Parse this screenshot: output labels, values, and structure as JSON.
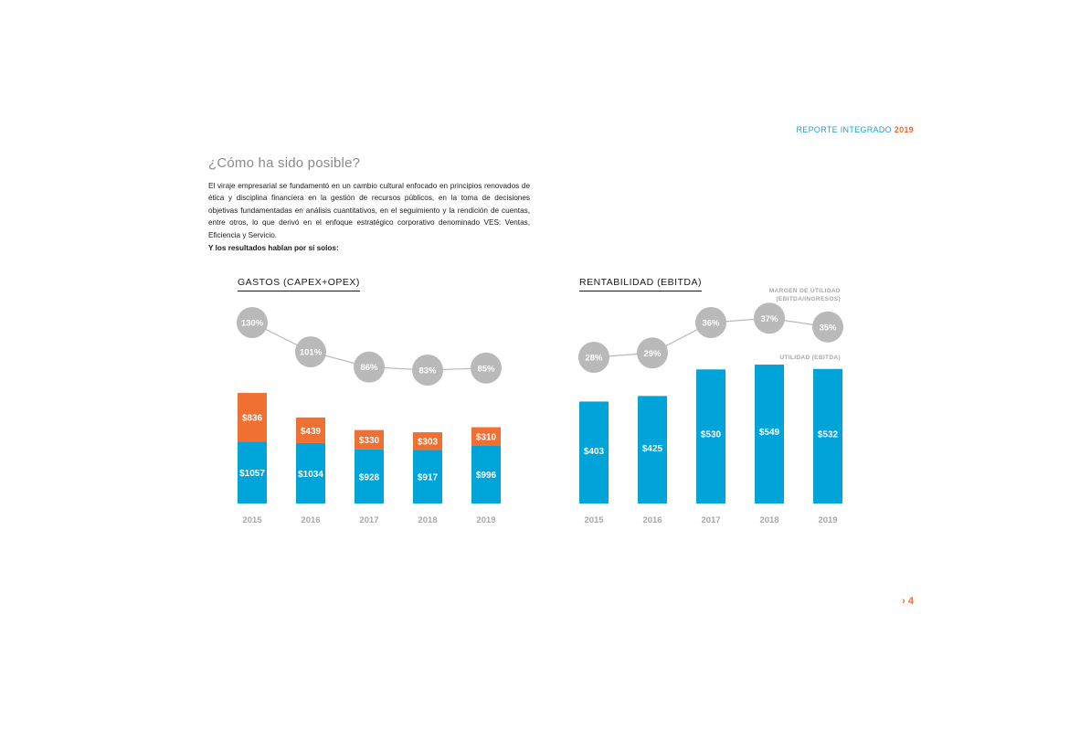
{
  "header": {
    "label": "REPORTE INTEGRADO",
    "year": "2019"
  },
  "heading": "¿Cómo ha sido posible?",
  "paragraph": "El viraje empresarial se fundamentó en un cambio cultural enfocado en principios renovados de ética y disciplina financiera en la gestión de recursos públicos, en la toma de decisiones objetivas fundamentadas en análisis cuantitativos, en el seguimiento y la rendición de cuentas, entre otros, lo que derivó en el enfoque estratégico corporativo denominado VES: Ventas, Eficiencia y Servicio.",
  "lead": "Y los resultados hablan por sí solos:",
  "page_number": "› 4",
  "colors": {
    "blue": "#00a4d9",
    "orange": "#f07034",
    "grey_circle": "#b9b9b9",
    "axis_label": "#a8a8a8",
    "accent": "#1aa3d6"
  },
  "chart_data": [
    {
      "type": "bar",
      "stacked": true,
      "title": "GASTOS (CAPEX+OPEX)",
      "categories": [
        "2015",
        "2016",
        "2017",
        "2018",
        "2019"
      ],
      "series": [
        {
          "values": [
            1057,
            1034,
            928,
            917,
            996
          ],
          "labels": [
            "$1057",
            "$1034",
            "$928",
            "$917",
            "$996"
          ]
        },
        {
          "values": [
            836,
            439,
            330,
            303,
            310
          ],
          "labels": [
            "$836",
            "$439",
            "$330",
            "$303",
            "$310"
          ]
        }
      ],
      "line_series": {
        "values": [
          130,
          101,
          86,
          83,
          85
        ],
        "labels": [
          "130%",
          "101%",
          "86%",
          "83%",
          "85%"
        ]
      }
    },
    {
      "type": "bar",
      "title": "RENTABILIDAD (EBITDA)",
      "categories": [
        "2015",
        "2016",
        "2017",
        "2018",
        "2019"
      ],
      "series": [
        {
          "name": "UTILIDAD (EBITDA)",
          "values": [
            403,
            425,
            530,
            549,
            532
          ],
          "labels": [
            "$403",
            "$425",
            "$530",
            "$549",
            "$532"
          ]
        }
      ],
      "line_series": {
        "name": "MARGEN DE UTILIDAD (EBITDA/INGRESOS)",
        "values": [
          28,
          29,
          36,
          37,
          35
        ],
        "labels": [
          "28%",
          "29%",
          "36%",
          "37%",
          "35%"
        ]
      }
    }
  ]
}
